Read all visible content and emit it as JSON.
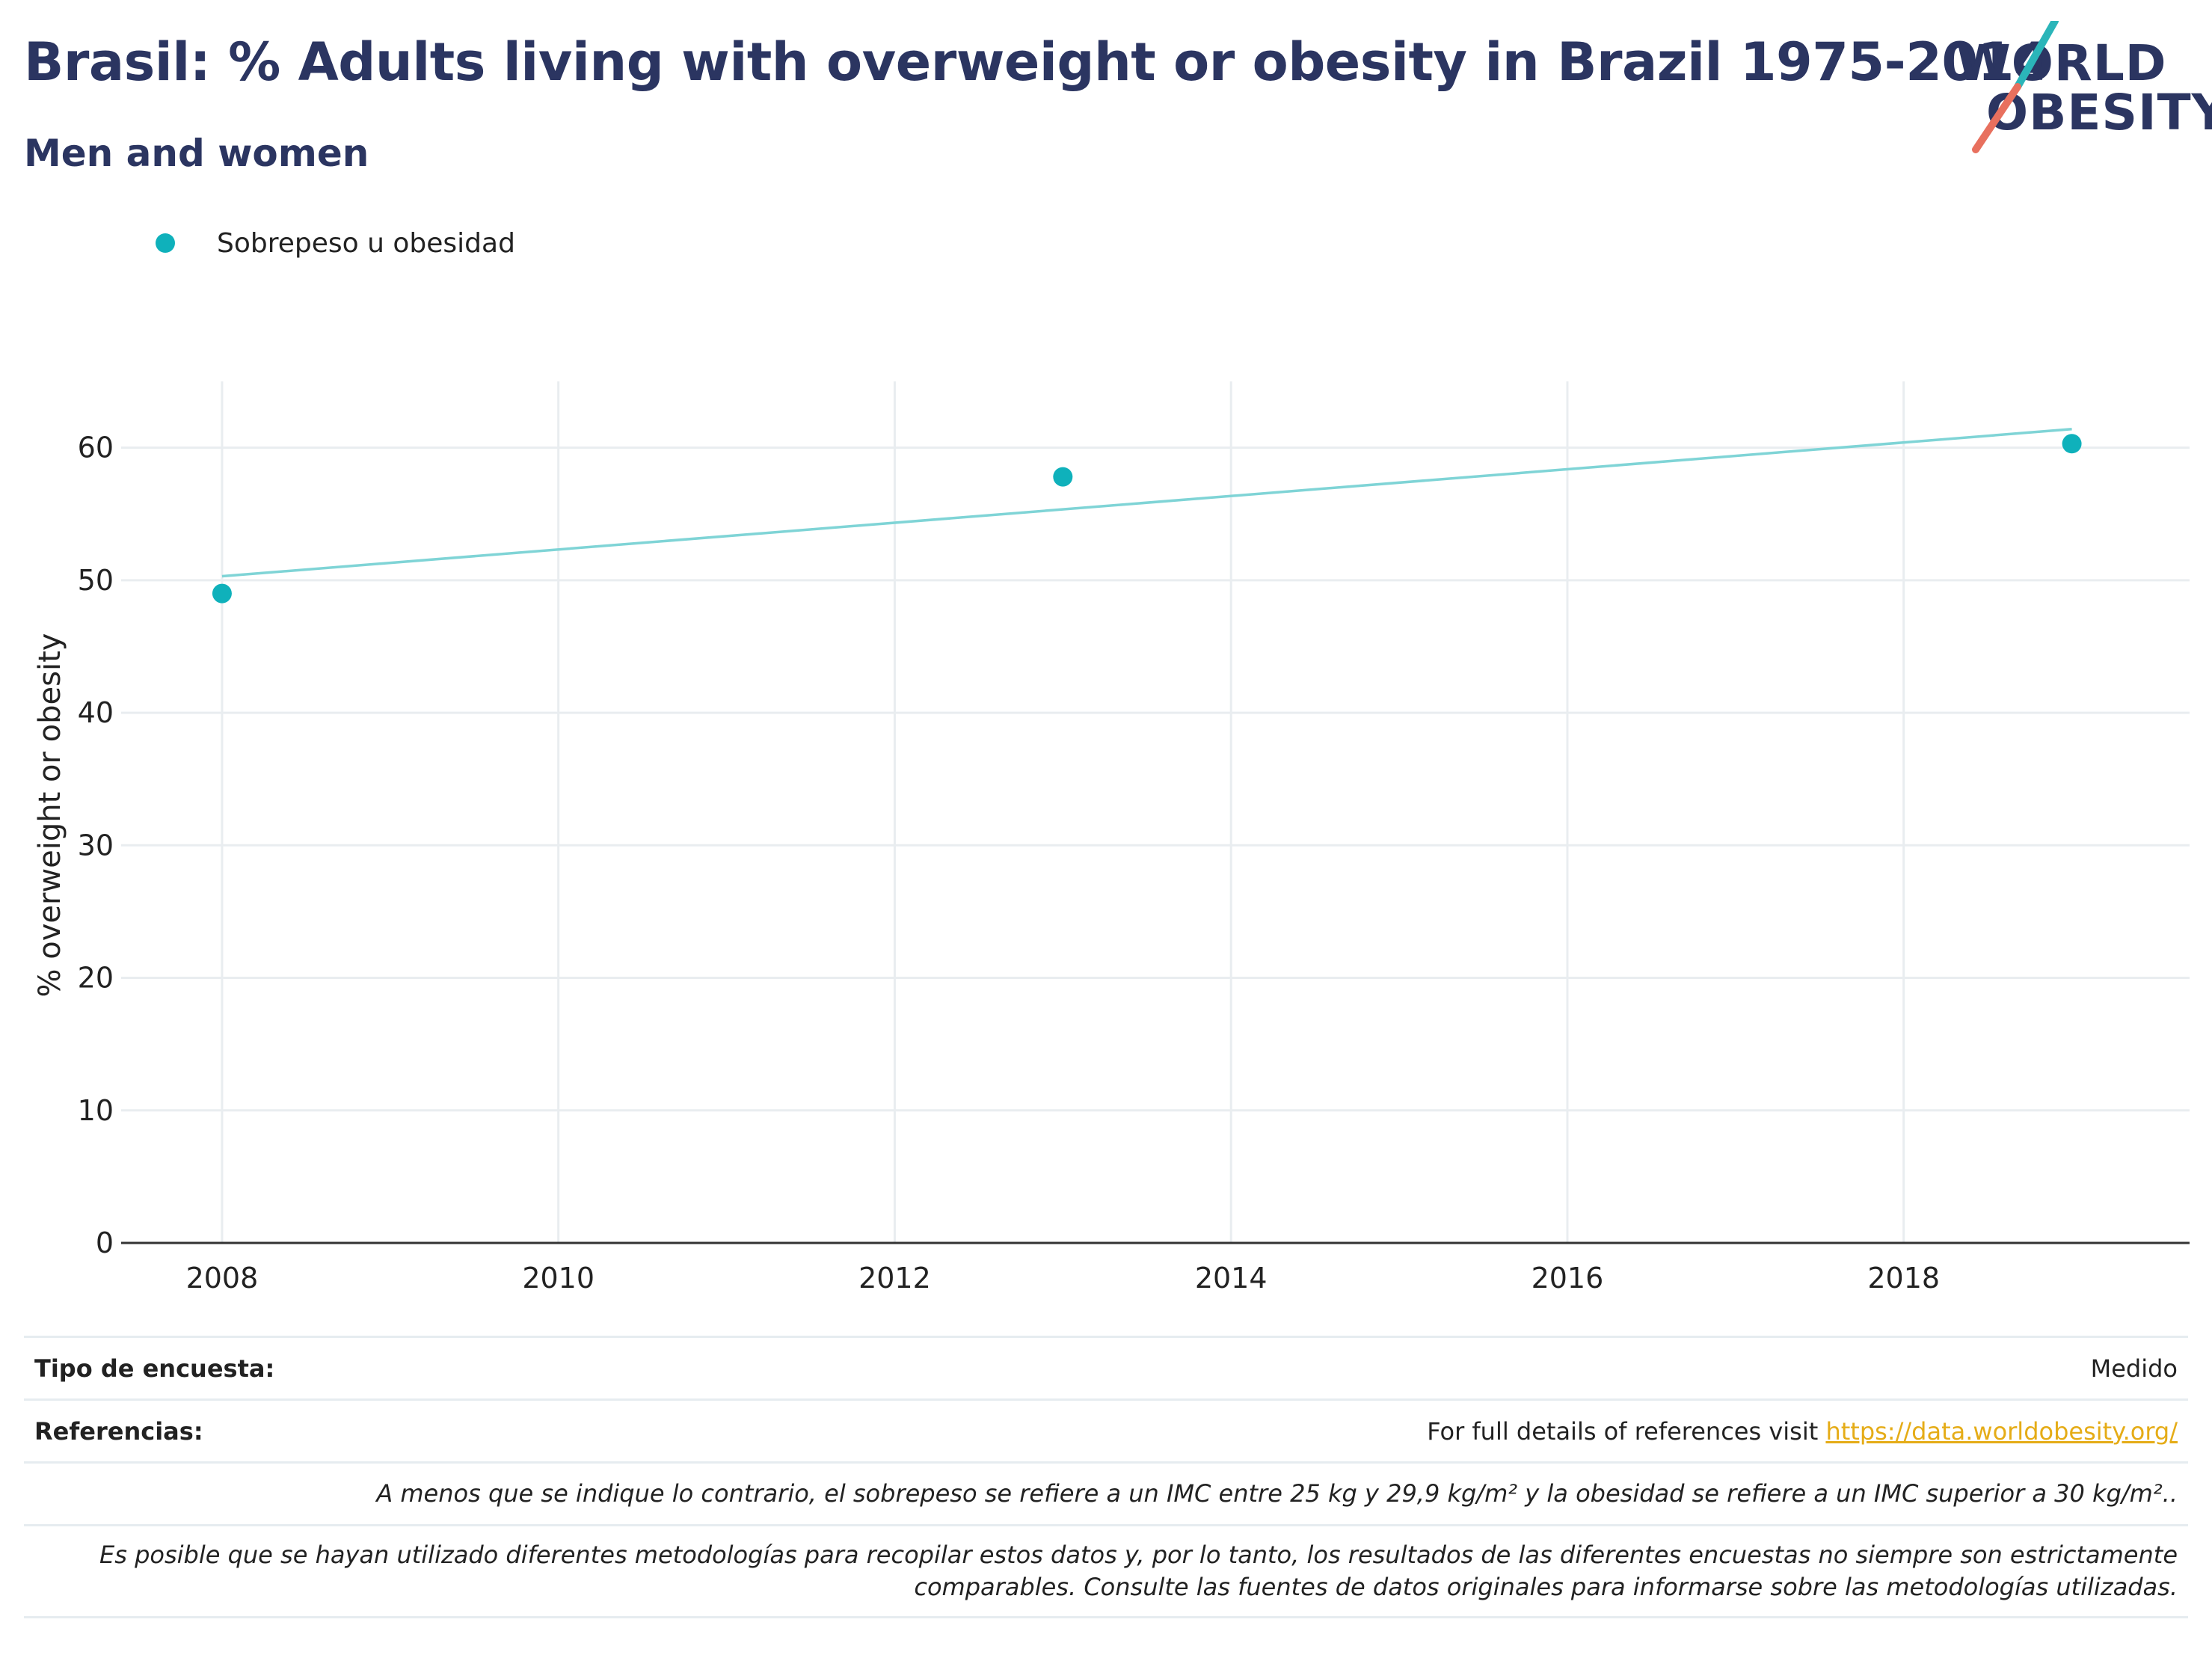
{
  "header": {
    "title": "Brasil: % Adults living with overweight or obesity in Brazil 1975-2014",
    "subtitle": "Men and women"
  },
  "logo": {
    "line1": "WORLD",
    "line2": "OBESITY",
    "colors": {
      "navy": "#2b3561",
      "teal": "#2bb5b9",
      "coral": "#e8705e"
    }
  },
  "legend": {
    "label": "Sobrepeso u obesidad"
  },
  "colors": {
    "point": "#0fb1bb",
    "trend": "#7fd4d6",
    "grid": "#e9edf0",
    "axis": "#333333",
    "link": "#e5ac17"
  },
  "chart_data": {
    "type": "scatter",
    "ylabel": "% overweight or obesity",
    "xlabel": "",
    "xlim": [
      2007.4,
      2019.7
    ],
    "ylim": [
      0,
      65
    ],
    "x_ticks": [
      2008,
      2010,
      2012,
      2014,
      2016,
      2018
    ],
    "y_ticks": [
      0,
      10,
      20,
      30,
      40,
      50,
      60
    ],
    "grid": true,
    "legend_position": "top-left",
    "series": [
      {
        "name": "Sobrepeso u obesidad",
        "points": [
          {
            "x": 2008,
            "y": 49.0
          },
          {
            "x": 2013,
            "y": 57.8
          },
          {
            "x": 2019,
            "y": 60.3
          }
        ]
      }
    ],
    "trendline": {
      "x": [
        2008,
        2019
      ],
      "y": [
        50.3,
        61.4
      ]
    }
  },
  "footer": {
    "survey_label": "Tipo de encuesta:",
    "survey_value": "Medido",
    "refs_label": "Referencias:",
    "refs_text": "For full details of references visit",
    "refs_link": "https://data.worldobesity.org/",
    "note1": "A menos que se indique lo contrario, el sobrepeso se refiere a un IMC entre 25 kg y 29,9 kg/m² y la obesidad se refiere a un IMC superior a 30 kg/m²..",
    "note2_line1": "Es posible que se hayan utilizado diferentes metodologías para recopilar estos datos y, por lo tanto, los resultados de las diferentes encuestas no siempre son estrictamente",
    "note2_line2": "comparables. Consulte las fuentes de datos originales para informarse sobre las metodologías utilizadas."
  }
}
